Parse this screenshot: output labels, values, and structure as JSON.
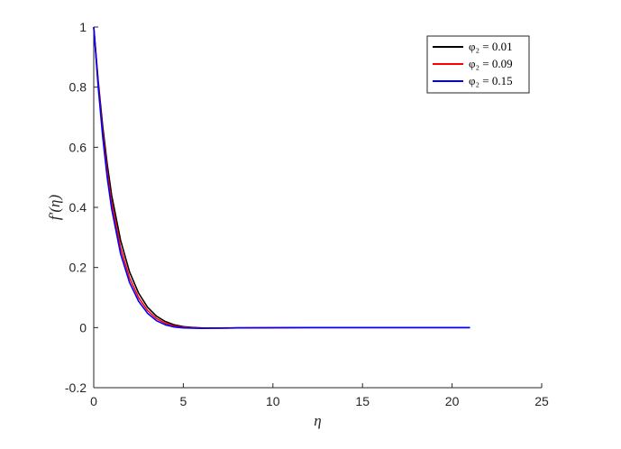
{
  "chart_data": {
    "type": "line",
    "title": "",
    "xlabel": "η",
    "ylabel": "f′(η)",
    "xlim": [
      0,
      25
    ],
    "ylim": [
      -0.2,
      1
    ],
    "x_ticks": [
      0,
      5,
      10,
      15,
      20,
      25
    ],
    "y_ticks": [
      -0.2,
      0,
      0.2,
      0.4,
      0.6,
      0.8,
      1
    ],
    "x_tick_labels": [
      "0",
      "5",
      "10",
      "15",
      "20",
      "25"
    ],
    "y_tick_labels": [
      "-0.2",
      "0",
      "0.2",
      "0.4",
      "0.6",
      "0.8",
      "1"
    ],
    "grid": false,
    "legend_position": "top-right",
    "x": [
      0,
      0.25,
      0.5,
      0.75,
      1,
      1.5,
      2,
      2.5,
      3,
      3.5,
      4,
      4.5,
      5,
      5.5,
      6,
      7,
      8,
      10,
      12,
      15,
      18,
      21
    ],
    "series": [
      {
        "name": "φ₂ = 0.01",
        "color": "#000000",
        "values": [
          1,
          0.82,
          0.67,
          0.545,
          0.44,
          0.29,
          0.185,
          0.115,
          0.068,
          0.038,
          0.02,
          0.009,
          0.003,
          0.0005,
          -0.001,
          -0.0015,
          -0.001,
          -0.0005,
          0,
          0,
          0,
          0
        ]
      },
      {
        "name": "φ₂ = 0.09",
        "color": "#ff0000",
        "values": [
          1,
          0.81,
          0.65,
          0.52,
          0.415,
          0.265,
          0.165,
          0.1,
          0.057,
          0.03,
          0.014,
          0.005,
          0.001,
          -0.001,
          -0.002,
          -0.002,
          -0.001,
          -0.0005,
          0,
          0,
          0,
          0
        ]
      },
      {
        "name": "φ₂ = 0.15",
        "color": "#0000ff",
        "values": [
          1,
          0.8,
          0.635,
          0.5,
          0.395,
          0.245,
          0.15,
          0.088,
          0.048,
          0.023,
          0.009,
          0.002,
          -0.001,
          -0.002,
          -0.0025,
          -0.002,
          -0.001,
          -0.0005,
          0,
          0,
          0,
          0
        ]
      }
    ]
  }
}
